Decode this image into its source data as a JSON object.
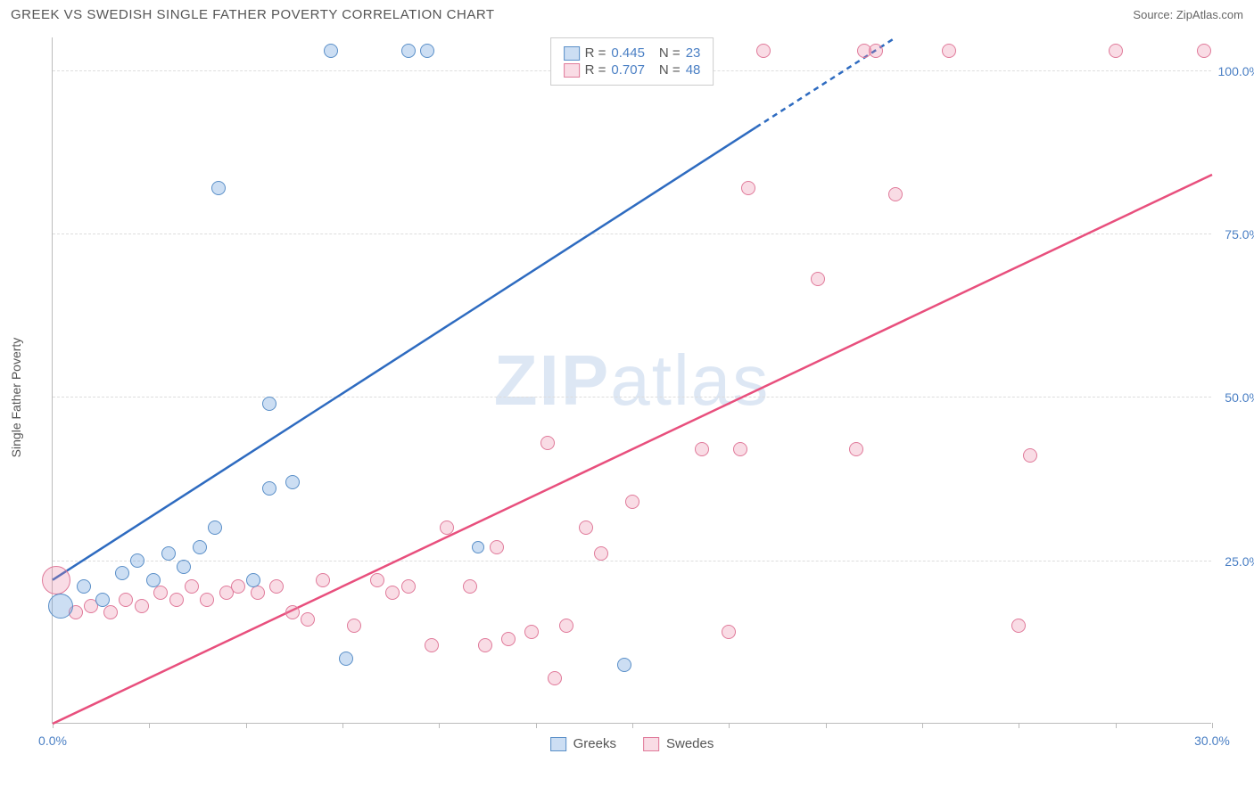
{
  "title": "GREEK VS SWEDISH SINGLE FATHER POVERTY CORRELATION CHART",
  "source_label": "Source:",
  "source_name": "ZipAtlas.com",
  "y_axis_label": "Single Father Poverty",
  "watermark": {
    "part1": "ZIP",
    "part2": "atlas"
  },
  "chart": {
    "type": "scatter",
    "xlim": [
      0,
      30
    ],
    "ylim": [
      0,
      105
    ],
    "x_ticks": [
      0,
      2.5,
      5,
      7.5,
      10,
      12.5,
      15,
      17.5,
      20,
      22.5,
      25,
      27.5,
      30
    ],
    "x_tick_labels": {
      "0": "0.0%",
      "30": "30.0%"
    },
    "y_gridlines": [
      25,
      50,
      75,
      100
    ],
    "y_tick_labels": {
      "25": "25.0%",
      "50": "50.0%",
      "75": "75.0%",
      "100": "100.0%"
    },
    "background_color": "#ffffff",
    "grid_color": "#dddddd",
    "axis_color": "#bbbbbb",
    "tick_label_color": "#4a7fc4",
    "series": {
      "greeks": {
        "label": "Greeks",
        "fill": "rgba(110, 160, 220, 0.35)",
        "stroke": "#5a8fc8",
        "line_color": "#2e6bc0",
        "r_value": "0.445",
        "n_value": "23",
        "trend": {
          "x1": 0,
          "y1": 22,
          "x2": 20.5,
          "y2": 100,
          "dash_from_x": 18.2
        },
        "points": [
          {
            "x": 0.2,
            "y": 18,
            "r": 14
          },
          {
            "x": 0.8,
            "y": 21,
            "r": 8
          },
          {
            "x": 1.3,
            "y": 19,
            "r": 8
          },
          {
            "x": 1.8,
            "y": 23,
            "r": 8
          },
          {
            "x": 2.2,
            "y": 25,
            "r": 8
          },
          {
            "x": 2.6,
            "y": 22,
            "r": 8
          },
          {
            "x": 3.0,
            "y": 26,
            "r": 8
          },
          {
            "x": 3.4,
            "y": 24,
            "r": 8
          },
          {
            "x": 3.8,
            "y": 27,
            "r": 8
          },
          {
            "x": 4.2,
            "y": 30,
            "r": 8
          },
          {
            "x": 4.3,
            "y": 82,
            "r": 8
          },
          {
            "x": 5.2,
            "y": 22,
            "r": 8
          },
          {
            "x": 5.6,
            "y": 36,
            "r": 8
          },
          {
            "x": 5.6,
            "y": 49,
            "r": 8
          },
          {
            "x": 6.2,
            "y": 37,
            "r": 8
          },
          {
            "x": 7.2,
            "y": 103,
            "r": 8
          },
          {
            "x": 7.6,
            "y": 10,
            "r": 8
          },
          {
            "x": 9.2,
            "y": 103,
            "r": 8
          },
          {
            "x": 9.7,
            "y": 103,
            "r": 8
          },
          {
            "x": 11.0,
            "y": 27,
            "r": 7
          },
          {
            "x": 14.8,
            "y": 9,
            "r": 8
          },
          {
            "x": 16.5,
            "y": 103,
            "r": 8
          }
        ]
      },
      "swedes": {
        "label": "Swedes",
        "fill": "rgba(235, 130, 160, 0.28)",
        "stroke": "#e07a9a",
        "line_color": "#e84f7d",
        "r_value": "0.707",
        "n_value": "48",
        "trend": {
          "x1": 0,
          "y1": 0,
          "x2": 30,
          "y2": 84
        },
        "points": [
          {
            "x": 0.1,
            "y": 22,
            "r": 16
          },
          {
            "x": 0.6,
            "y": 17,
            "r": 8
          },
          {
            "x": 1.0,
            "y": 18,
            "r": 8
          },
          {
            "x": 1.5,
            "y": 17,
            "r": 8
          },
          {
            "x": 1.9,
            "y": 19,
            "r": 8
          },
          {
            "x": 2.3,
            "y": 18,
            "r": 8
          },
          {
            "x": 2.8,
            "y": 20,
            "r": 8
          },
          {
            "x": 3.2,
            "y": 19,
            "r": 8
          },
          {
            "x": 3.6,
            "y": 21,
            "r": 8
          },
          {
            "x": 4.0,
            "y": 19,
            "r": 8
          },
          {
            "x": 4.5,
            "y": 20,
            "r": 8
          },
          {
            "x": 4.8,
            "y": 21,
            "r": 8
          },
          {
            "x": 5.3,
            "y": 20,
            "r": 8
          },
          {
            "x": 5.8,
            "y": 21,
            "r": 8
          },
          {
            "x": 6.2,
            "y": 17,
            "r": 8
          },
          {
            "x": 6.6,
            "y": 16,
            "r": 8
          },
          {
            "x": 7.0,
            "y": 22,
            "r": 8
          },
          {
            "x": 7.8,
            "y": 15,
            "r": 8
          },
          {
            "x": 8.4,
            "y": 22,
            "r": 8
          },
          {
            "x": 8.8,
            "y": 20,
            "r": 8
          },
          {
            "x": 9.2,
            "y": 21,
            "r": 8
          },
          {
            "x": 9.8,
            "y": 12,
            "r": 8
          },
          {
            "x": 10.2,
            "y": 30,
            "r": 8
          },
          {
            "x": 10.8,
            "y": 21,
            "r": 8
          },
          {
            "x": 11.2,
            "y": 12,
            "r": 8
          },
          {
            "x": 11.5,
            "y": 27,
            "r": 8
          },
          {
            "x": 11.8,
            "y": 13,
            "r": 8
          },
          {
            "x": 12.4,
            "y": 14,
            "r": 8
          },
          {
            "x": 12.8,
            "y": 43,
            "r": 8
          },
          {
            "x": 13.0,
            "y": 7,
            "r": 8
          },
          {
            "x": 13.3,
            "y": 15,
            "r": 8
          },
          {
            "x": 13.8,
            "y": 30,
            "r": 8
          },
          {
            "x": 14.2,
            "y": 26,
            "r": 8
          },
          {
            "x": 15.0,
            "y": 34,
            "r": 8
          },
          {
            "x": 16.8,
            "y": 42,
            "r": 8
          },
          {
            "x": 17.5,
            "y": 14,
            "r": 8
          },
          {
            "x": 17.8,
            "y": 42,
            "r": 8
          },
          {
            "x": 18.0,
            "y": 82,
            "r": 8
          },
          {
            "x": 18.4,
            "y": 103,
            "r": 8
          },
          {
            "x": 19.8,
            "y": 68,
            "r": 8
          },
          {
            "x": 20.8,
            "y": 42,
            "r": 8
          },
          {
            "x": 21.0,
            "y": 103,
            "r": 8
          },
          {
            "x": 21.3,
            "y": 103,
            "r": 8
          },
          {
            "x": 21.8,
            "y": 81,
            "r": 8
          },
          {
            "x": 23.2,
            "y": 103,
            "r": 8
          },
          {
            "x": 25.0,
            "y": 15,
            "r": 8
          },
          {
            "x": 25.3,
            "y": 41,
            "r": 8
          },
          {
            "x": 27.5,
            "y": 103,
            "r": 8
          },
          {
            "x": 29.8,
            "y": 103,
            "r": 8
          }
        ]
      }
    }
  },
  "legend_top": {
    "r_label": "R =",
    "n_label": "N ="
  }
}
